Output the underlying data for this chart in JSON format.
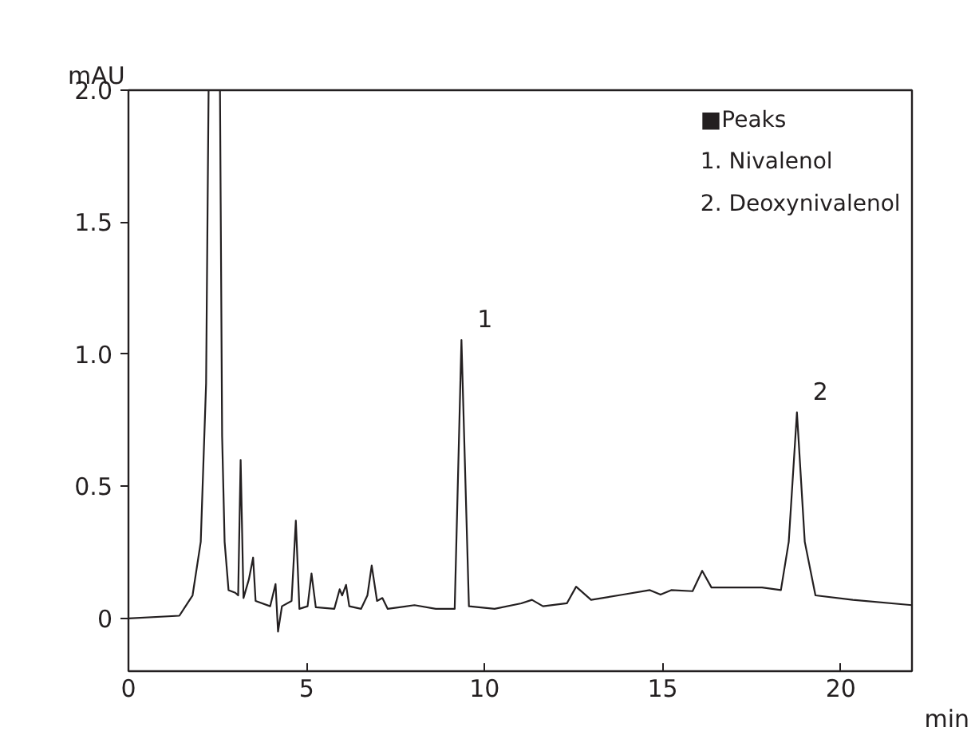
{
  "chart_data": {
    "type": "line",
    "xlabel": "min",
    "ylabel": "mAU",
    "xlim": [
      0,
      22
    ],
    "ylim": [
      -0.2,
      2.0
    ],
    "xticks": [
      0,
      5,
      10,
      15,
      20
    ],
    "yticks": [
      {
        "value": 0,
        "label": "0"
      },
      {
        "value": 0.5,
        "label": "0.5"
      },
      {
        "value": 1.0,
        "label": "1.0"
      },
      {
        "value": 1.5,
        "label": "1.5"
      },
      {
        "value": 2.0,
        "label": "2.0"
      }
    ],
    "grid": false,
    "marker": "none",
    "line_style": "solid",
    "series": [
      {
        "color": "#231f20",
        "x": [
          0,
          1.43,
          1.8,
          2.03,
          2.18,
          2.25,
          2.57,
          2.63,
          2.7,
          2.81,
          3.0,
          3.08,
          3.15,
          3.23,
          3.38,
          3.5,
          3.57,
          3.98,
          4.13,
          4.2,
          4.31,
          4.58,
          4.7,
          4.8,
          5.03,
          5.14,
          5.26,
          5.78,
          5.93,
          6.0,
          6.11,
          6.2,
          6.53,
          6.71,
          6.83,
          6.98,
          7.13,
          7.28,
          8.03,
          8.63,
          9.16,
          9.35,
          9.56,
          10.28,
          11.03,
          11.33,
          11.64,
          12.31,
          12.57,
          12.99,
          13.89,
          14.64,
          14.94,
          15.24,
          15.84,
          16.11,
          16.37,
          17.79,
          18.32,
          18.54,
          18.77,
          18.99,
          19.29,
          20.34,
          22.0
        ],
        "values": [
          0.0,
          0.01,
          0.087,
          0.29,
          0.89,
          2.0,
          2.0,
          0.69,
          0.29,
          0.107,
          0.097,
          0.087,
          0.6,
          0.077,
          0.147,
          0.23,
          0.066,
          0.046,
          0.13,
          -0.05,
          0.046,
          0.066,
          0.37,
          0.036,
          0.046,
          0.17,
          0.042,
          0.036,
          0.11,
          0.087,
          0.127,
          0.046,
          0.036,
          0.087,
          0.2,
          0.066,
          0.077,
          0.036,
          0.05,
          0.036,
          0.036,
          1.054,
          0.046,
          0.036,
          0.057,
          0.07,
          0.046,
          0.057,
          0.12,
          0.07,
          0.09,
          0.107,
          0.09,
          0.107,
          0.103,
          0.18,
          0.117,
          0.117,
          0.107,
          0.29,
          0.78,
          0.29,
          0.087,
          0.07,
          0.05
        ]
      }
    ],
    "annotations": [
      "■Peaks",
      "1. Nivalenol",
      "2. Deoxynivalenol",
      {
        "text": "1",
        "x": 9.35,
        "y": 1.054
      },
      {
        "text": "2",
        "x": 18.77,
        "y": 0.78
      }
    ]
  }
}
